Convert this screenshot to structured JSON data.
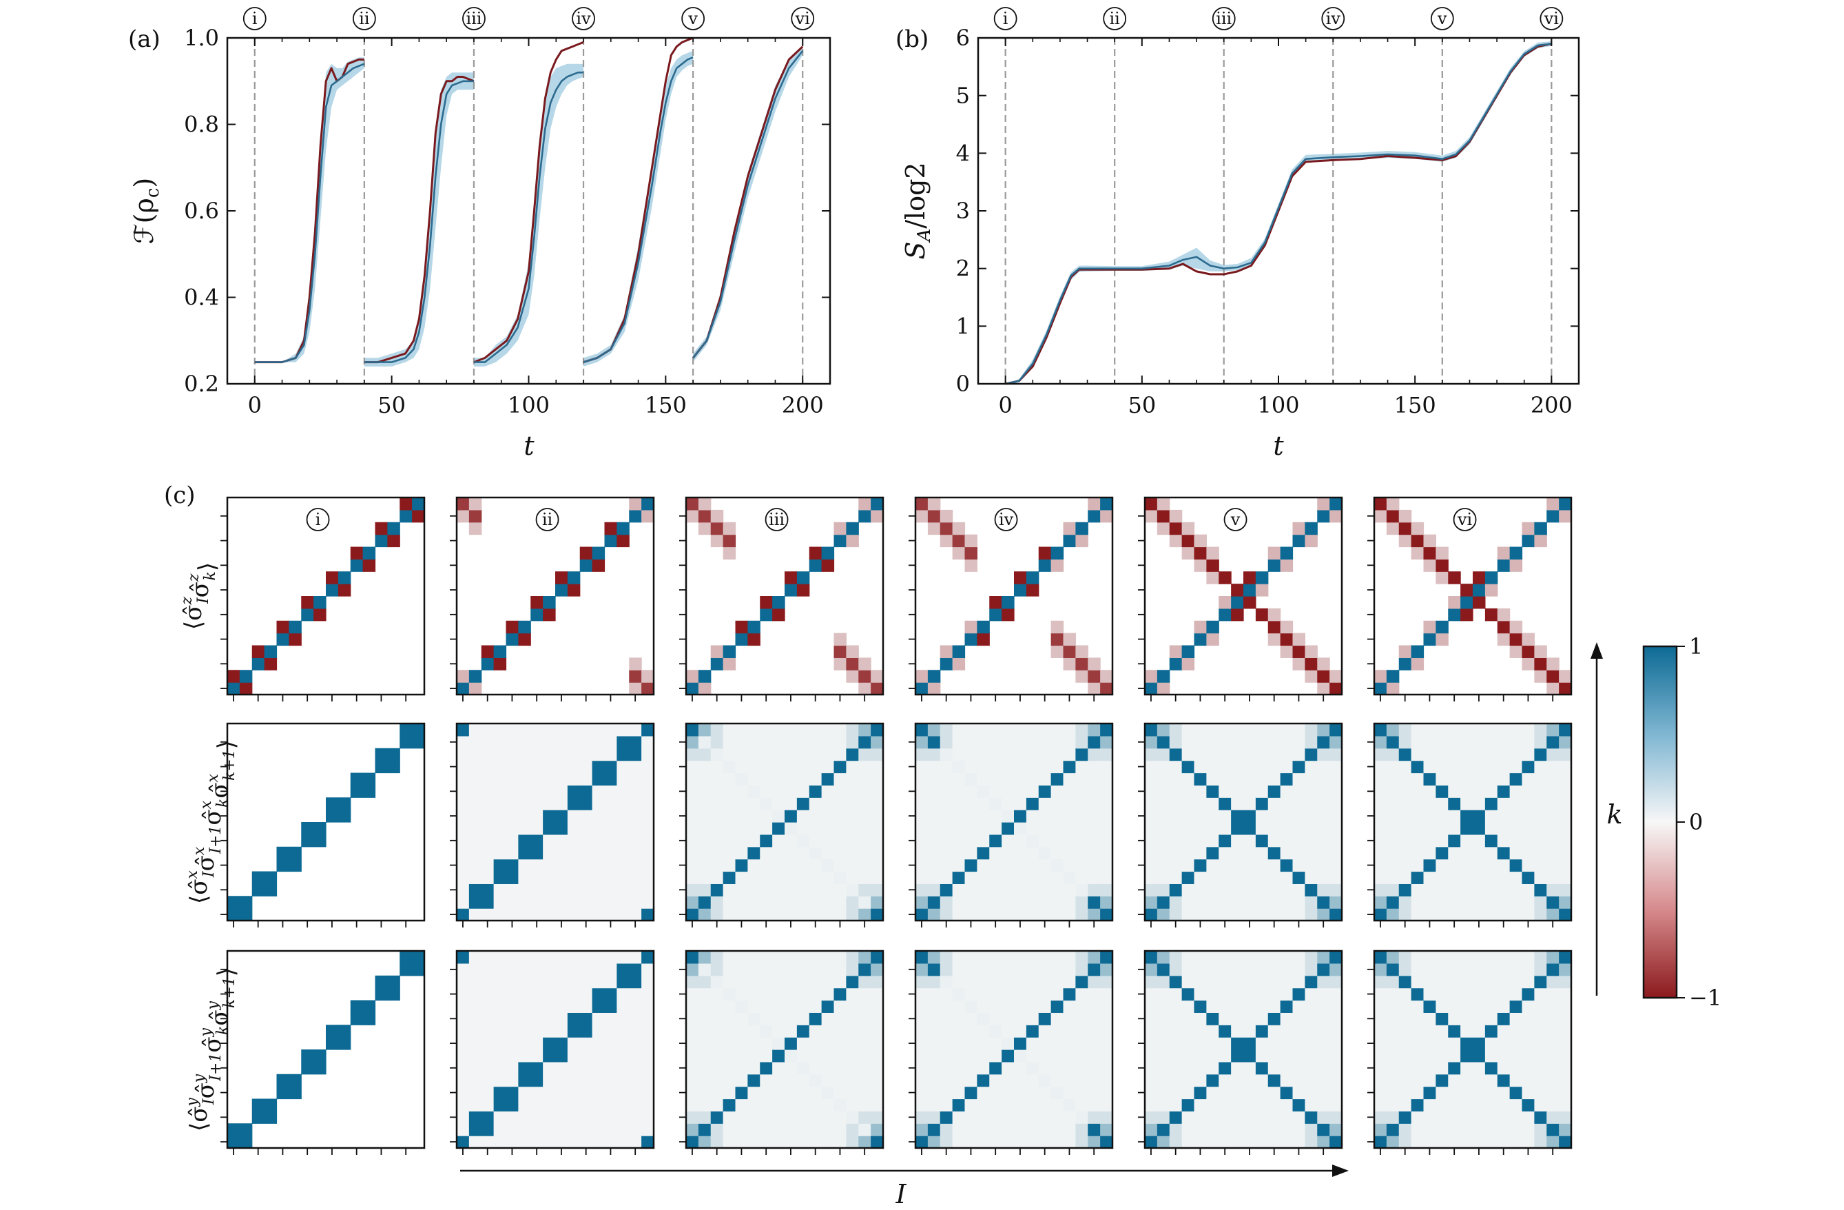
{
  "chart_data": [
    {
      "type": "line",
      "panel_label": "(a)",
      "xlabel": "t",
      "ylabel": "F(ρc)",
      "ylabel_parts": {
        "base": "ℱ(ρ",
        "sub": "c",
        "end": ")"
      },
      "xlim": [
        -10,
        210
      ],
      "ylim": [
        0.2,
        1.0
      ],
      "xticks": [
        0,
        50,
        100,
        150,
        200
      ],
      "yticks": [
        0.2,
        0.4,
        0.6,
        0.8,
        1.0
      ],
      "ytick_labels": [
        "0.2",
        "0.4",
        "0.6",
        "0.8",
        "1.0"
      ],
      "markers": {
        "x": [
          0,
          40,
          80,
          120,
          160,
          200
        ],
        "labels": [
          "i",
          "ii",
          "iii",
          "iv",
          "v",
          "vi"
        ]
      },
      "colors": {
        "ideal": "#7a1a1e",
        "mean": "#2c6b8f",
        "band": "#a9d0e3",
        "marker": "#9a9a9a"
      },
      "series": [
        {
          "role": "ideal",
          "x": [
            0,
            5,
            10,
            15,
            18,
            20,
            22,
            24,
            26,
            28,
            30,
            32,
            34,
            36,
            38,
            40,
            40,
            45,
            50,
            55,
            58,
            60,
            62,
            64,
            66,
            68,
            70,
            72,
            74,
            76,
            78,
            80,
            80,
            84,
            88,
            92,
            96,
            100,
            102,
            104,
            106,
            108,
            110,
            112,
            114,
            116,
            118,
            120,
            120,
            125,
            130,
            135,
            140,
            145,
            148,
            150,
            152,
            154,
            156,
            158,
            160,
            160,
            165,
            170,
            175,
            180,
            185,
            190,
            195,
            200
          ],
          "y": [
            0.25,
            0.25,
            0.25,
            0.26,
            0.3,
            0.4,
            0.55,
            0.75,
            0.9,
            0.93,
            0.9,
            0.91,
            0.94,
            0.945,
            0.95,
            0.95,
            0.25,
            0.25,
            0.26,
            0.27,
            0.3,
            0.35,
            0.45,
            0.6,
            0.78,
            0.87,
            0.9,
            0.9,
            0.91,
            0.91,
            0.905,
            0.9,
            0.25,
            0.26,
            0.28,
            0.3,
            0.35,
            0.46,
            0.6,
            0.75,
            0.86,
            0.92,
            0.95,
            0.97,
            0.975,
            0.98,
            0.985,
            0.99,
            0.25,
            0.26,
            0.28,
            0.35,
            0.5,
            0.7,
            0.82,
            0.9,
            0.96,
            0.98,
            0.99,
            0.995,
            1.0,
            0.26,
            0.3,
            0.4,
            0.55,
            0.68,
            0.78,
            0.88,
            0.95,
            0.98
          ]
        },
        {
          "role": "mean",
          "x": [
            0,
            5,
            10,
            15,
            18,
            20,
            22,
            24,
            26,
            28,
            30,
            32,
            34,
            36,
            38,
            40,
            40,
            45,
            50,
            55,
            58,
            60,
            62,
            64,
            66,
            68,
            70,
            72,
            74,
            76,
            78,
            80,
            80,
            84,
            88,
            92,
            96,
            100,
            102,
            104,
            106,
            108,
            110,
            112,
            114,
            116,
            118,
            120,
            120,
            125,
            130,
            135,
            140,
            145,
            148,
            150,
            152,
            154,
            156,
            158,
            160,
            160,
            165,
            170,
            175,
            180,
            185,
            190,
            195,
            200
          ],
          "y": [
            0.25,
            0.25,
            0.25,
            0.26,
            0.29,
            0.37,
            0.5,
            0.68,
            0.84,
            0.89,
            0.9,
            0.91,
            0.92,
            0.93,
            0.935,
            0.94,
            0.25,
            0.25,
            0.25,
            0.26,
            0.28,
            0.32,
            0.4,
            0.52,
            0.68,
            0.8,
            0.87,
            0.89,
            0.895,
            0.9,
            0.9,
            0.9,
            0.25,
            0.25,
            0.27,
            0.29,
            0.33,
            0.42,
            0.54,
            0.68,
            0.79,
            0.85,
            0.88,
            0.9,
            0.91,
            0.915,
            0.92,
            0.92,
            0.25,
            0.26,
            0.28,
            0.34,
            0.48,
            0.66,
            0.78,
            0.85,
            0.9,
            0.93,
            0.94,
            0.95,
            0.955,
            0.26,
            0.3,
            0.39,
            0.53,
            0.66,
            0.76,
            0.86,
            0.93,
            0.97
          ]
        },
        {
          "role": "band",
          "x": [
            0,
            5,
            10,
            15,
            18,
            20,
            22,
            24,
            26,
            28,
            30,
            32,
            34,
            36,
            38,
            40,
            40,
            45,
            50,
            55,
            58,
            60,
            62,
            64,
            66,
            68,
            70,
            72,
            74,
            76,
            78,
            80,
            80,
            84,
            88,
            92,
            96,
            100,
            102,
            104,
            106,
            108,
            110,
            112,
            114,
            116,
            118,
            120,
            120,
            125,
            130,
            135,
            140,
            145,
            148,
            150,
            152,
            154,
            156,
            158,
            160,
            160,
            165,
            170,
            175,
            180,
            185,
            190,
            195,
            200
          ],
          "y_low": [
            0.25,
            0.25,
            0.25,
            0.25,
            0.27,
            0.32,
            0.42,
            0.58,
            0.74,
            0.84,
            0.88,
            0.89,
            0.9,
            0.91,
            0.92,
            0.93,
            0.24,
            0.24,
            0.24,
            0.25,
            0.26,
            0.28,
            0.33,
            0.42,
            0.56,
            0.7,
            0.82,
            0.87,
            0.88,
            0.88,
            0.88,
            0.88,
            0.24,
            0.24,
            0.25,
            0.27,
            0.3,
            0.36,
            0.45,
            0.58,
            0.7,
            0.79,
            0.84,
            0.87,
            0.89,
            0.9,
            0.905,
            0.91,
            0.24,
            0.25,
            0.27,
            0.32,
            0.44,
            0.61,
            0.73,
            0.81,
            0.87,
            0.91,
            0.925,
            0.935,
            0.94,
            0.25,
            0.29,
            0.37,
            0.5,
            0.63,
            0.73,
            0.83,
            0.91,
            0.96
          ],
          "y_high": [
            0.25,
            0.25,
            0.25,
            0.27,
            0.31,
            0.42,
            0.58,
            0.78,
            0.92,
            0.94,
            0.93,
            0.93,
            0.945,
            0.95,
            0.955,
            0.955,
            0.26,
            0.26,
            0.27,
            0.28,
            0.3,
            0.36,
            0.47,
            0.62,
            0.79,
            0.88,
            0.91,
            0.92,
            0.92,
            0.92,
            0.92,
            0.92,
            0.26,
            0.26,
            0.29,
            0.31,
            0.36,
            0.48,
            0.63,
            0.77,
            0.87,
            0.91,
            0.93,
            0.935,
            0.94,
            0.94,
            0.94,
            0.94,
            0.26,
            0.27,
            0.29,
            0.36,
            0.52,
            0.71,
            0.83,
            0.89,
            0.93,
            0.95,
            0.96,
            0.965,
            0.97,
            0.27,
            0.31,
            0.41,
            0.56,
            0.69,
            0.79,
            0.89,
            0.95,
            0.98
          ]
        }
      ]
    },
    {
      "type": "line",
      "panel_label": "(b)",
      "xlabel": "t",
      "ylabel": "SA/log2",
      "ylabel_parts": {
        "base": "S",
        "sub": "A",
        "end": "/log2"
      },
      "xlim": [
        -10,
        210
      ],
      "ylim": [
        0,
        6
      ],
      "xticks": [
        0,
        50,
        100,
        150,
        200
      ],
      "yticks": [
        0,
        1,
        2,
        3,
        4,
        5,
        6
      ],
      "ytick_labels": [
        "0",
        "1",
        "2",
        "3",
        "4",
        "5",
        "6"
      ],
      "markers": {
        "x": [
          0,
          40,
          80,
          120,
          160,
          200
        ],
        "labels": [
          "i",
          "ii",
          "iii",
          "iv",
          "v",
          "vi"
        ]
      },
      "colors": {
        "ideal": "#7a1a1e",
        "mean": "#2c6b8f",
        "band": "#a9d0e3",
        "marker": "#9a9a9a"
      },
      "series": [
        {
          "role": "ideal",
          "x": [
            0,
            5,
            10,
            15,
            20,
            24,
            27,
            30,
            40,
            50,
            60,
            65,
            70,
            75,
            80,
            85,
            90,
            95,
            100,
            105,
            110,
            120,
            130,
            140,
            150,
            160,
            165,
            170,
            175,
            180,
            185,
            190,
            195,
            200
          ],
          "y": [
            0,
            0.05,
            0.3,
            0.8,
            1.4,
            1.85,
            1.98,
            1.98,
            1.98,
            1.98,
            2.0,
            2.08,
            1.95,
            1.9,
            1.9,
            1.95,
            2.05,
            2.4,
            3.0,
            3.6,
            3.85,
            3.88,
            3.9,
            3.95,
            3.92,
            3.88,
            3.95,
            4.2,
            4.6,
            5.0,
            5.4,
            5.7,
            5.85,
            5.9
          ]
        },
        {
          "role": "mean",
          "x": [
            0,
            5,
            10,
            15,
            20,
            24,
            27,
            30,
            40,
            50,
            60,
            65,
            70,
            75,
            80,
            85,
            90,
            95,
            100,
            105,
            110,
            120,
            130,
            140,
            150,
            160,
            165,
            170,
            175,
            180,
            185,
            190,
            195,
            200
          ],
          "y": [
            0,
            0.05,
            0.35,
            0.85,
            1.45,
            1.88,
            2.0,
            2.0,
            2.0,
            2.0,
            2.05,
            2.15,
            2.2,
            2.05,
            2.0,
            2.02,
            2.1,
            2.45,
            3.05,
            3.65,
            3.9,
            3.93,
            3.95,
            3.98,
            3.96,
            3.9,
            3.98,
            4.22,
            4.62,
            5.02,
            5.42,
            5.72,
            5.87,
            5.9
          ]
        },
        {
          "role": "band",
          "x": [
            0,
            5,
            10,
            15,
            20,
            24,
            27,
            30,
            40,
            50,
            60,
            65,
            70,
            75,
            80,
            85,
            90,
            95,
            100,
            105,
            110,
            120,
            130,
            140,
            150,
            160,
            165,
            170,
            175,
            180,
            185,
            190,
            195,
            200
          ],
          "y_low": [
            0,
            0.03,
            0.28,
            0.76,
            1.36,
            1.8,
            1.94,
            1.95,
            1.96,
            1.96,
            1.98,
            2.05,
            2.0,
            1.95,
            1.95,
            1.97,
            2.03,
            2.38,
            2.98,
            3.58,
            3.84,
            3.87,
            3.89,
            3.92,
            3.9,
            3.85,
            3.92,
            4.15,
            4.55,
            4.96,
            5.36,
            5.67,
            5.82,
            5.86
          ],
          "y_high": [
            0,
            0.08,
            0.42,
            0.92,
            1.52,
            1.94,
            2.05,
            2.05,
            2.04,
            2.04,
            2.12,
            2.24,
            2.36,
            2.14,
            2.06,
            2.08,
            2.18,
            2.52,
            3.12,
            3.72,
            3.97,
            3.99,
            4.01,
            4.04,
            4.02,
            3.96,
            4.04,
            4.28,
            4.68,
            5.08,
            5.48,
            5.77,
            5.92,
            5.94
          ]
        }
      ]
    },
    {
      "type": "heatmap",
      "panel_label": "(c)",
      "grid_size": 16,
      "xlabel": "I",
      "ylabel": "k",
      "columns": [
        "i",
        "ii",
        "iii",
        "iv",
        "v",
        "vi"
      ],
      "rows": [
        "⟨σ̂zI σ̂zk⟩",
        "⟨σ̂xI σ̂xI+1 σ̂xk σ̂xk+1⟩",
        "⟨σ̂yI σ̂yI+1 σ̂yk σ̂yk+1⟩"
      ],
      "row_label_parts": [
        {
          "ops": [
            {
              "op": "σ̂",
              "sup": "z",
              "sub": "I"
            },
            {
              "op": "σ̂",
              "sup": "z",
              "sub": "k"
            }
          ]
        },
        {
          "ops": [
            {
              "op": "σ̂",
              "sup": "x",
              "sub": "I"
            },
            {
              "op": "σ̂",
              "sup": "x",
              "sub": "I+1"
            },
            {
              "op": "σ̂",
              "sup": "x",
              "sub": "k"
            },
            {
              "op": "σ̂",
              "sup": "x",
              "sub": "k+1"
            }
          ]
        },
        {
          "ops": [
            {
              "op": "σ̂",
              "sup": "y",
              "sub": "I"
            },
            {
              "op": "σ̂",
              "sup": "y",
              "sub": "I+1"
            },
            {
              "op": "σ̂",
              "sup": "y",
              "sub": "k"
            },
            {
              "op": "σ̂",
              "sup": "y",
              "sub": "k+1"
            }
          ]
        }
      ],
      "colorbar": {
        "min": -1,
        "max": 1,
        "ticks": [
          1,
          0,
          -1
        ],
        "tick_labels": [
          "1",
          "0",
          "−1"
        ]
      },
      "colors": {
        "positive": "#0d6a94",
        "zero": "#f7f7f7",
        "negative": "#8b1a1d"
      },
      "pattern": "correlations between paired qubits: diagonal pairs at i, anti-diagonal pairs forming an X by vi"
    }
  ]
}
